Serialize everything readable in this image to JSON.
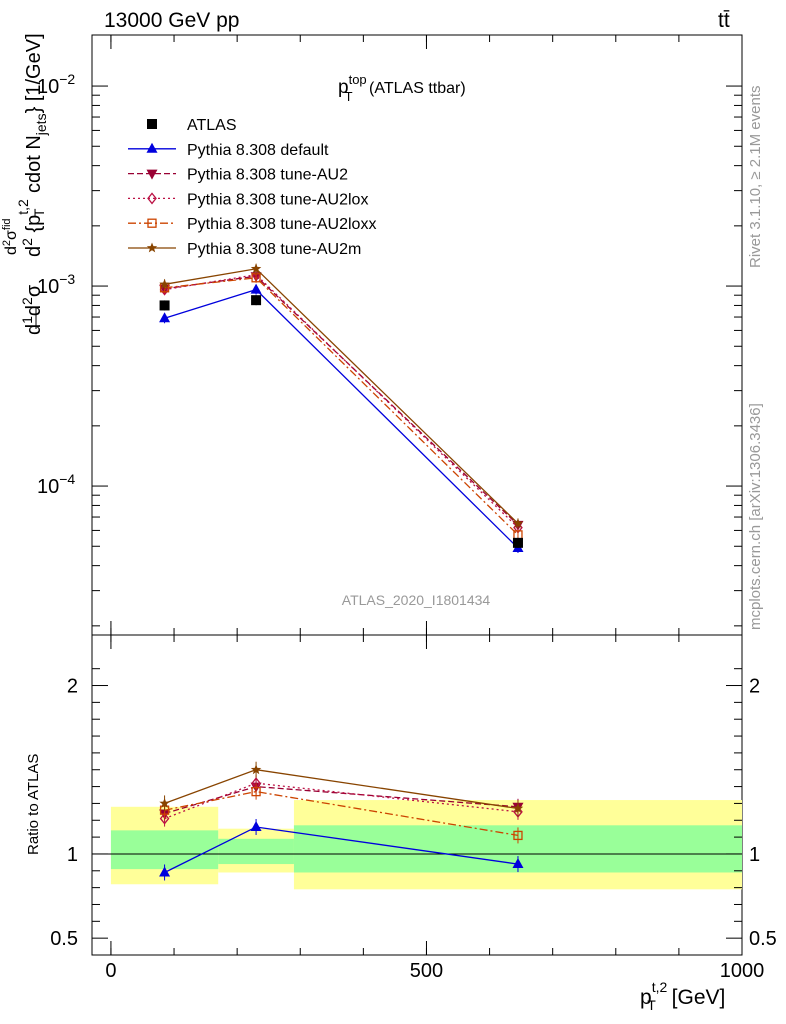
{
  "header": {
    "left": "13000 GeV pp",
    "right": "tt̄"
  },
  "side_labels": {
    "rivet": "Rivet 3.1.10, ≥ 2.1M events",
    "mcplots": "mcplots.cern.ch [arXiv:1306.3436]"
  },
  "watermark": "ATLAS_2020_I1801434",
  "legend": [
    {
      "label": "ATLAS",
      "color": "#000000",
      "marker": "square-filled",
      "line": "none"
    },
    {
      "label": "Pythia 8.308 default",
      "color": "#0000dd",
      "marker": "triangle-up-filled",
      "line": "solid"
    },
    {
      "label": "Pythia 8.308 tune-AU2",
      "color": "#990033",
      "marker": "triangle-down-filled",
      "line": "dashed"
    },
    {
      "label": "Pythia 8.308 tune-AU2lox",
      "color": "#bb1144",
      "marker": "diamond-open",
      "line": "dotted"
    },
    {
      "label": "Pythia 8.308 tune-AU2loxx",
      "color": "#cc4400",
      "marker": "square-open",
      "line": "dashdot"
    },
    {
      "label": "Pythia 8.308 tune-AU2m",
      "color": "#884400",
      "marker": "star",
      "line": "solid"
    }
  ],
  "chart_data": [
    {
      "type": "line",
      "panel": "main",
      "title": {
        "base": "p",
        "sup": "top",
        "sub": "T",
        "rest": " (ATLAS ttbar)"
      },
      "ylabel": "d²σ / d²{p_T^{t,2} cdot N_jets} [1/GeV]",
      "yscale": "log",
      "ylim": [
        1.8e-05,
        0.018
      ],
      "yticks": [
        {
          "value": 0.0001,
          "label": "10",
          "exp": "−4"
        },
        {
          "value": 0.001,
          "label": "10",
          "exp": "−3"
        },
        {
          "value": 0.01,
          "label": "10",
          "exp": "−2"
        }
      ],
      "xlim": [
        -30,
        1000
      ],
      "x": [
        85,
        230,
        645
      ],
      "bins": [
        [
          0,
          170
        ],
        [
          170,
          290
        ],
        [
          290,
          1000
        ]
      ],
      "series": [
        {
          "name": "ATLAS",
          "values": [
            0.0008,
            0.00085,
            5.2e-05
          ]
        },
        {
          "name": "Pythia 8.308 default",
          "values": [
            0.00069,
            0.00096,
            4.9e-05
          ]
        },
        {
          "name": "Pythia 8.308 tune-AU2",
          "values": [
            0.00097,
            0.00112,
            6.4e-05
          ]
        },
        {
          "name": "Pythia 8.308 tune-AU2lox",
          "values": [
            0.00096,
            0.00114,
            6.2e-05
          ]
        },
        {
          "name": "Pythia 8.308 tune-AU2loxx",
          "values": [
            0.00098,
            0.0011,
            5.7e-05
          ]
        },
        {
          "name": "Pythia 8.308 tune-AU2m",
          "values": [
            0.00102,
            0.00122,
            6.5e-05
          ]
        }
      ]
    },
    {
      "type": "line",
      "panel": "ratio",
      "ylabel": "Ratio to ATLAS",
      "xlabel": {
        "base": "p",
        "sup": "t,2",
        "sub": "T",
        "rest": " [GeV]"
      },
      "ylim": [
        0.4,
        2.3
      ],
      "yticks": [
        0.5,
        1,
        2
      ],
      "ytick_labels": [
        "0.5",
        "1",
        "2"
      ],
      "xlim": [
        -30,
        1000
      ],
      "xticks": [
        0,
        500,
        1000
      ],
      "xtick_labels": [
        "0",
        "500",
        "1000"
      ],
      "bands": [
        {
          "x0": 0,
          "x1": 170,
          "green": [
            0.91,
            1.14
          ],
          "yellow": [
            0.82,
            1.28
          ]
        },
        {
          "x0": 170,
          "x1": 290,
          "green": [
            0.94,
            1.09
          ],
          "yellow": [
            0.89,
            1.15
          ]
        },
        {
          "x0": 290,
          "x1": 1000,
          "green": [
            0.89,
            1.17
          ],
          "yellow": [
            0.79,
            1.32
          ]
        }
      ],
      "x": [
        85,
        230,
        645
      ],
      "series": [
        {
          "name": "Pythia 8.308 default",
          "values": [
            0.89,
            1.16,
            0.94
          ]
        },
        {
          "name": "Pythia 8.308 tune-AU2",
          "values": [
            1.24,
            1.4,
            1.28
          ]
        },
        {
          "name": "Pythia 8.308 tune-AU2lox",
          "values": [
            1.21,
            1.42,
            1.25
          ]
        },
        {
          "name": "Pythia 8.308 tune-AU2loxx",
          "values": [
            1.26,
            1.37,
            1.11
          ]
        },
        {
          "name": "Pythia 8.308 tune-AU2m",
          "values": [
            1.3,
            1.5,
            1.27
          ]
        }
      ]
    }
  ]
}
